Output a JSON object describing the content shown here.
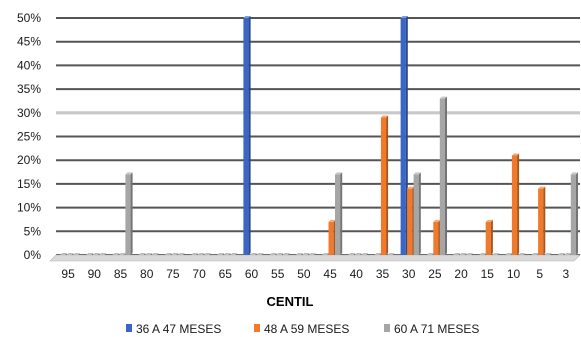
{
  "chart_data": {
    "type": "bar",
    "title": "",
    "xlabel": "CENTIL",
    "ylabel": "",
    "ylim": [
      0,
      50
    ],
    "y_ticks": [
      "0%",
      "5%",
      "10%",
      "15%",
      "20%",
      "25%",
      "30%",
      "35%",
      "40%",
      "45%",
      "50%"
    ],
    "categories": [
      "95",
      "90",
      "85",
      "80",
      "75",
      "70",
      "65",
      "60",
      "55",
      "50",
      "45",
      "40",
      "35",
      "30",
      "25",
      "20",
      "15",
      "10",
      "5",
      "3"
    ],
    "series": [
      {
        "name": "36 A 47 MESES",
        "color": "#3a66c6",
        "values": [
          0,
          0,
          0,
          0,
          0,
          0,
          0,
          50,
          0,
          0,
          0,
          0,
          0,
          50,
          0,
          0,
          0,
          0,
          0,
          0
        ]
      },
      {
        "name": "48 A 59 MESES",
        "color": "#f07a2c",
        "values": [
          0,
          0,
          0,
          0,
          0,
          0,
          0,
          0,
          0,
          0,
          7,
          0,
          29,
          14,
          7,
          0,
          7,
          21,
          14,
          0
        ]
      },
      {
        "name": "60 A 71 MESES",
        "color": "#a6a6a6",
        "values": [
          0,
          0,
          17,
          0,
          0,
          0,
          0,
          0,
          0,
          0,
          17,
          0,
          0,
          17,
          33,
          0,
          0,
          0,
          0,
          17
        ]
      }
    ],
    "grid": true,
    "legend_position": "bottom"
  }
}
